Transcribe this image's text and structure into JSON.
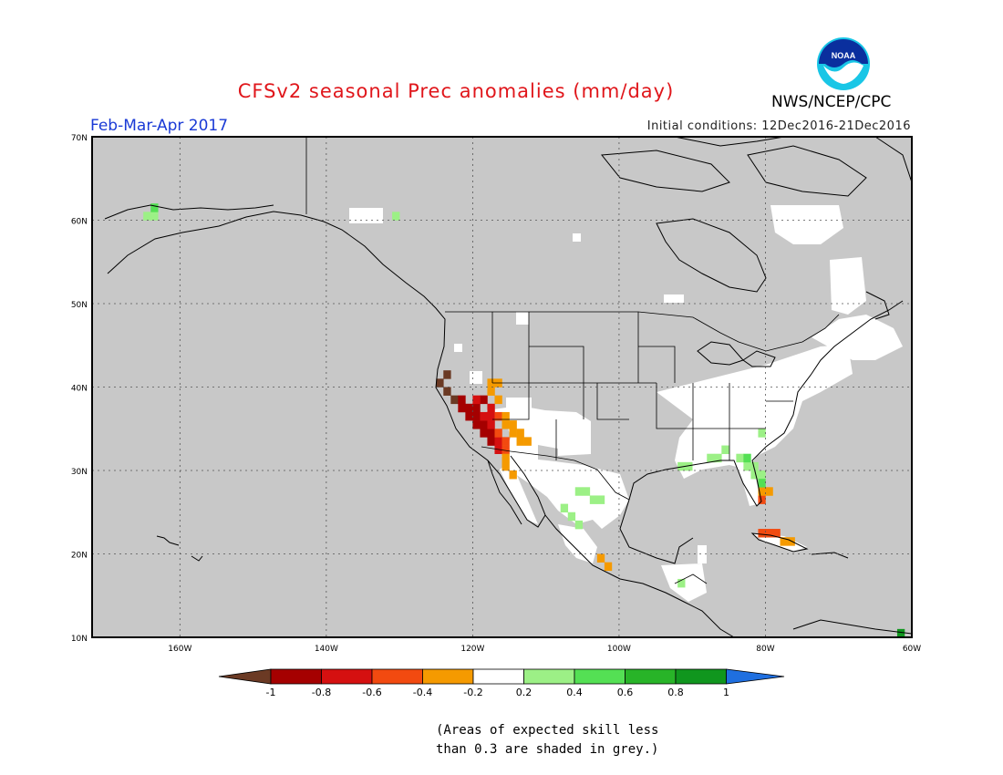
{
  "title": "CFSv2 seasonal Prec anomalies (mm/day)",
  "agency": "NWS/NCEP/CPC",
  "logo_text": "NOAA",
  "period": "Feb-Mar-Apr 2017",
  "initial_conditions": "Initial conditions: 12Dec2016-21Dec2016",
  "note_line1": "(Areas of expected skill less",
  "note_line2": "than 0.3 are shaded in grey.)",
  "map": {
    "lon_range": [
      -172,
      -60
    ],
    "lat_range": [
      10,
      70
    ],
    "lat_ticks": [
      "10N",
      "20N",
      "30N",
      "40N",
      "50N",
      "60N",
      "70N"
    ],
    "lon_ticks": [
      "160W",
      "140W",
      "120W",
      "100W",
      "80W",
      "60W"
    ],
    "background_color": "#c8c8c8",
    "grid": true
  },
  "colorbar": {
    "tick_labels": [
      "-1",
      "-0.8",
      "-0.6",
      "-0.4",
      "-0.2",
      "0.2",
      "0.4",
      "0.6",
      "0.8",
      "1"
    ],
    "bins": [
      {
        "range": "< -1",
        "color": "#6b3a24"
      },
      {
        "range": "-1 to -0.8",
        "color": "#a50000"
      },
      {
        "range": "-0.8 to -0.6",
        "color": "#d51010"
      },
      {
        "range": "-0.6 to -0.4",
        "color": "#f24a10"
      },
      {
        "range": "-0.4 to -0.2",
        "color": "#f59a00"
      },
      {
        "range": "-0.2 to 0.2",
        "color": "#ffffff"
      },
      {
        "range": "0.2 to 0.4",
        "color": "#9cf086"
      },
      {
        "range": "0.4 to 0.6",
        "color": "#54e054"
      },
      {
        "range": "0.6 to 0.8",
        "color": "#28b428"
      },
      {
        "range": "0.8 to 1",
        "color": "#10961e"
      },
      {
        "range": "> 1",
        "color": "#1f6fe0"
      }
    ]
  },
  "anomaly_cells": [
    {
      "lon": -125,
      "lat": 40,
      "bin": 0
    },
    {
      "lon": -124,
      "lat": 41,
      "bin": 0
    },
    {
      "lon": -124,
      "lat": 39,
      "bin": 0
    },
    {
      "lon": -123,
      "lat": 38,
      "bin": 0
    },
    {
      "lon": -122,
      "lat": 38,
      "bin": 1
    },
    {
      "lon": -122,
      "lat": 37,
      "bin": 1
    },
    {
      "lon": -121,
      "lat": 37,
      "bin": 1
    },
    {
      "lon": -121,
      "lat": 36,
      "bin": 1
    },
    {
      "lon": -120,
      "lat": 37,
      "bin": 1
    },
    {
      "lon": -120,
      "lat": 36,
      "bin": 1
    },
    {
      "lon": -120,
      "lat": 35,
      "bin": 1
    },
    {
      "lon": -119,
      "lat": 35,
      "bin": 1
    },
    {
      "lon": -119,
      "lat": 34,
      "bin": 1
    },
    {
      "lon": -118,
      "lat": 34,
      "bin": 1
    },
    {
      "lon": -118,
      "lat": 33,
      "bin": 1
    },
    {
      "lon": -119,
      "lat": 38,
      "bin": 1
    },
    {
      "lon": -120,
      "lat": 38,
      "bin": 2
    },
    {
      "lon": -118,
      "lat": 36,
      "bin": 2
    },
    {
      "lon": -118,
      "lat": 35,
      "bin": 2
    },
    {
      "lon": -117,
      "lat": 33,
      "bin": 2
    },
    {
      "lon": -117,
      "lat": 32,
      "bin": 2
    },
    {
      "lon": -119,
      "lat": 36,
      "bin": 2
    },
    {
      "lon": -118,
      "lat": 37,
      "bin": 2
    },
    {
      "lon": -117,
      "lat": 36,
      "bin": 3
    },
    {
      "lon": -117,
      "lat": 34,
      "bin": 3
    },
    {
      "lon": -116,
      "lat": 33,
      "bin": 3
    },
    {
      "lon": -116,
      "lat": 32,
      "bin": 3
    },
    {
      "lon": -81,
      "lat": 26,
      "bin": 3
    },
    {
      "lon": -81,
      "lat": 22,
      "bin": 3
    },
    {
      "lon": -80,
      "lat": 22,
      "bin": 3
    },
    {
      "lon": -79,
      "lat": 22,
      "bin": 3
    },
    {
      "lon": -118,
      "lat": 40,
      "bin": 4
    },
    {
      "lon": -117,
      "lat": 40,
      "bin": 4
    },
    {
      "lon": -118,
      "lat": 39,
      "bin": 4
    },
    {
      "lon": -117,
      "lat": 38,
      "bin": 4
    },
    {
      "lon": -116,
      "lat": 36,
      "bin": 4
    },
    {
      "lon": -116,
      "lat": 35,
      "bin": 4
    },
    {
      "lon": -115,
      "lat": 35,
      "bin": 4
    },
    {
      "lon": -115,
      "lat": 34,
      "bin": 4
    },
    {
      "lon": -114,
      "lat": 34,
      "bin": 4
    },
    {
      "lon": -114,
      "lat": 33,
      "bin": 4
    },
    {
      "lon": -113,
      "lat": 33,
      "bin": 4
    },
    {
      "lon": -116,
      "lat": 31,
      "bin": 4
    },
    {
      "lon": -116,
      "lat": 30,
      "bin": 4
    },
    {
      "lon": -115,
      "lat": 29,
      "bin": 4
    },
    {
      "lon": -103,
      "lat": 19,
      "bin": 4
    },
    {
      "lon": -102,
      "lat": 18,
      "bin": 4
    },
    {
      "lon": -81,
      "lat": 27,
      "bin": 4
    },
    {
      "lon": -80,
      "lat": 27,
      "bin": 4
    },
    {
      "lon": -78,
      "lat": 21,
      "bin": 4
    },
    {
      "lon": -77,
      "lat": 21,
      "bin": 4
    },
    {
      "lon": -165,
      "lat": 60,
      "bin": 6
    },
    {
      "lon": -164,
      "lat": 60,
      "bin": 6
    },
    {
      "lon": -131,
      "lat": 60,
      "bin": 6
    },
    {
      "lon": -106,
      "lat": 27,
      "bin": 6
    },
    {
      "lon": -105,
      "lat": 27,
      "bin": 6
    },
    {
      "lon": -104,
      "lat": 26,
      "bin": 6
    },
    {
      "lon": -103,
      "lat": 26,
      "bin": 6
    },
    {
      "lon": -108,
      "lat": 25,
      "bin": 6
    },
    {
      "lon": -107,
      "lat": 24,
      "bin": 6
    },
    {
      "lon": -106,
      "lat": 23,
      "bin": 6
    },
    {
      "lon": -92,
      "lat": 30,
      "bin": 6
    },
    {
      "lon": -91,
      "lat": 30,
      "bin": 6
    },
    {
      "lon": -88,
      "lat": 31,
      "bin": 6
    },
    {
      "lon": -87,
      "lat": 31,
      "bin": 6
    },
    {
      "lon": -86,
      "lat": 32,
      "bin": 6
    },
    {
      "lon": -84,
      "lat": 31,
      "bin": 6
    },
    {
      "lon": -83,
      "lat": 30,
      "bin": 6
    },
    {
      "lon": -82,
      "lat": 30,
      "bin": 6
    },
    {
      "lon": -82,
      "lat": 29,
      "bin": 6
    },
    {
      "lon": -81,
      "lat": 29,
      "bin": 6
    },
    {
      "lon": -92,
      "lat": 16,
      "bin": 6
    },
    {
      "lon": -81,
      "lat": 34,
      "bin": 6
    },
    {
      "lon": -164,
      "lat": 61,
      "bin": 7
    },
    {
      "lon": -83,
      "lat": 31,
      "bin": 7
    },
    {
      "lon": -81,
      "lat": 28,
      "bin": 7
    },
    {
      "lon": -62,
      "lat": 10,
      "bin": 9
    }
  ]
}
